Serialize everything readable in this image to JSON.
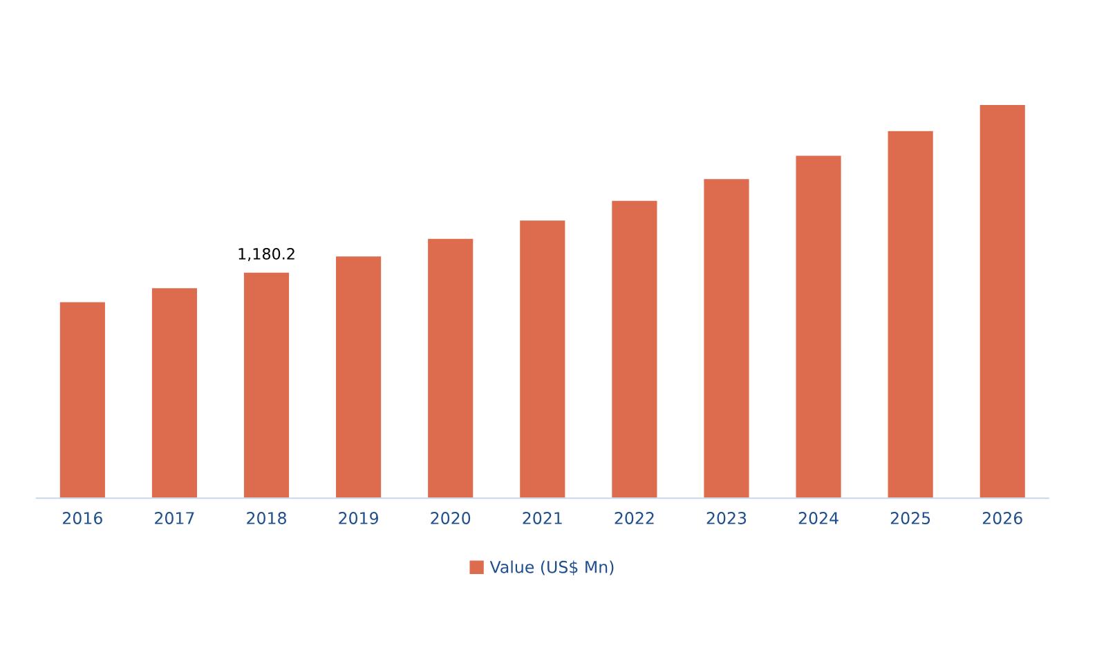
{
  "chart_data": {
    "type": "bar",
    "categories": [
      "2016",
      "2017",
      "2018",
      "2019",
      "2020",
      "2021",
      "2022",
      "2023",
      "2024",
      "2025",
      "2026"
    ],
    "series": [
      {
        "name": "Value (US$ Mn)",
        "color": "#dd6b4d",
        "values": [
          1026,
          1099,
          1180.2,
          1265,
          1357,
          1452,
          1555,
          1669,
          1790,
          1919,
          2055
        ],
        "value_labels": [
          null,
          null,
          "1,180.2",
          null,
          null,
          null,
          null,
          null,
          null,
          null,
          null
        ]
      }
    ],
    "legend": "bottom",
    "grid": false
  }
}
